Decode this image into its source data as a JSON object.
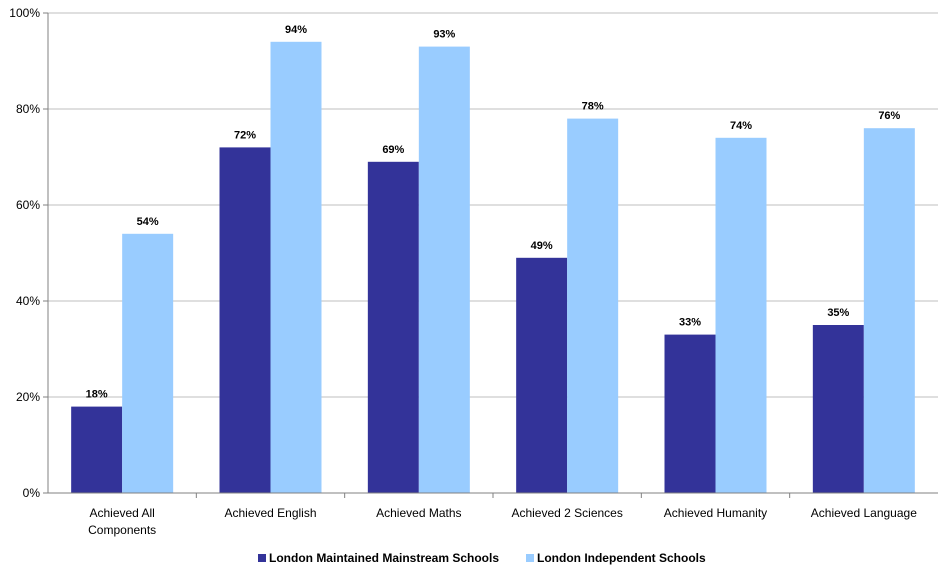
{
  "chart_data": {
    "type": "bar",
    "title": "",
    "xlabel": "",
    "ylabel": "",
    "ylim": [
      0,
      100
    ],
    "yticks": [
      "0%",
      "20%",
      "40%",
      "60%",
      "80%",
      "100%"
    ],
    "ytick_values": [
      0,
      20,
      40,
      60,
      80,
      100
    ],
    "grid": true,
    "legend_position": "bottom",
    "categories": [
      [
        "Achieved All",
        "Components"
      ],
      [
        "Achieved English"
      ],
      [
        "Achieved Maths"
      ],
      [
        "Achieved 2 Sciences"
      ],
      [
        "Achieved Humanity"
      ],
      [
        "Achieved Language"
      ]
    ],
    "series": [
      {
        "name": "London Maintained Mainstream Schools",
        "color": "#333399",
        "values": [
          18,
          72,
          69,
          49,
          33,
          35
        ],
        "labels": [
          "18%",
          "72%",
          "69%",
          "49%",
          "33%",
          "35%"
        ]
      },
      {
        "name": "London Independent Schools",
        "color": "#99CCFF",
        "values": [
          54,
          94,
          93,
          78,
          74,
          76
        ],
        "labels": [
          "54%",
          "94%",
          "93%",
          "78%",
          "74%",
          "76%"
        ]
      }
    ]
  }
}
